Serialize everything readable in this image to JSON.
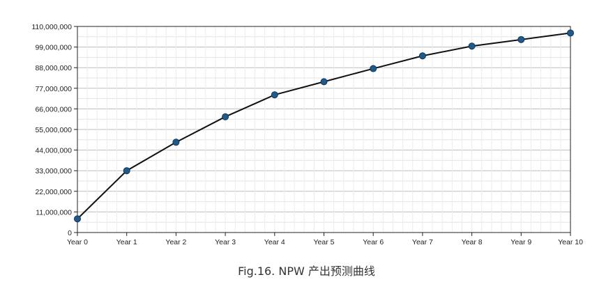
{
  "chart_data": {
    "type": "line",
    "title": "",
    "xlabel": "",
    "ylabel": "",
    "categories": [
      "Year 0",
      "Year 1",
      "Year 2",
      "Year 3",
      "Year 4",
      "Year 5",
      "Year 6",
      "Year 7",
      "Year 8",
      "Year 9",
      "Year 10"
    ],
    "series": [
      {
        "values": [
          7300000,
          33000000,
          48200000,
          61800000,
          73500000,
          80500000,
          87500000,
          94300000,
          99500000,
          103000000,
          106500000
        ]
      }
    ],
    "ylim": [
      0,
      110000000
    ],
    "yticks": [
      0,
      11000000,
      22000000,
      33000000,
      44000000,
      55000000,
      66000000,
      77000000,
      88000000,
      99000000,
      110000000
    ],
    "ytick_labels": [
      "0",
      "11,000,000",
      "22,000,000",
      "33,000,000",
      "44,000,000",
      "55,000,000",
      "66,000,000",
      "77,000,000",
      "88,000,000",
      "99,000,000",
      "110,000,000"
    ],
    "grid": true,
    "line_color": "#111111",
    "marker_color": "#1f5a8a"
  },
  "caption": "Fig.16. NPW 产出预测曲线"
}
